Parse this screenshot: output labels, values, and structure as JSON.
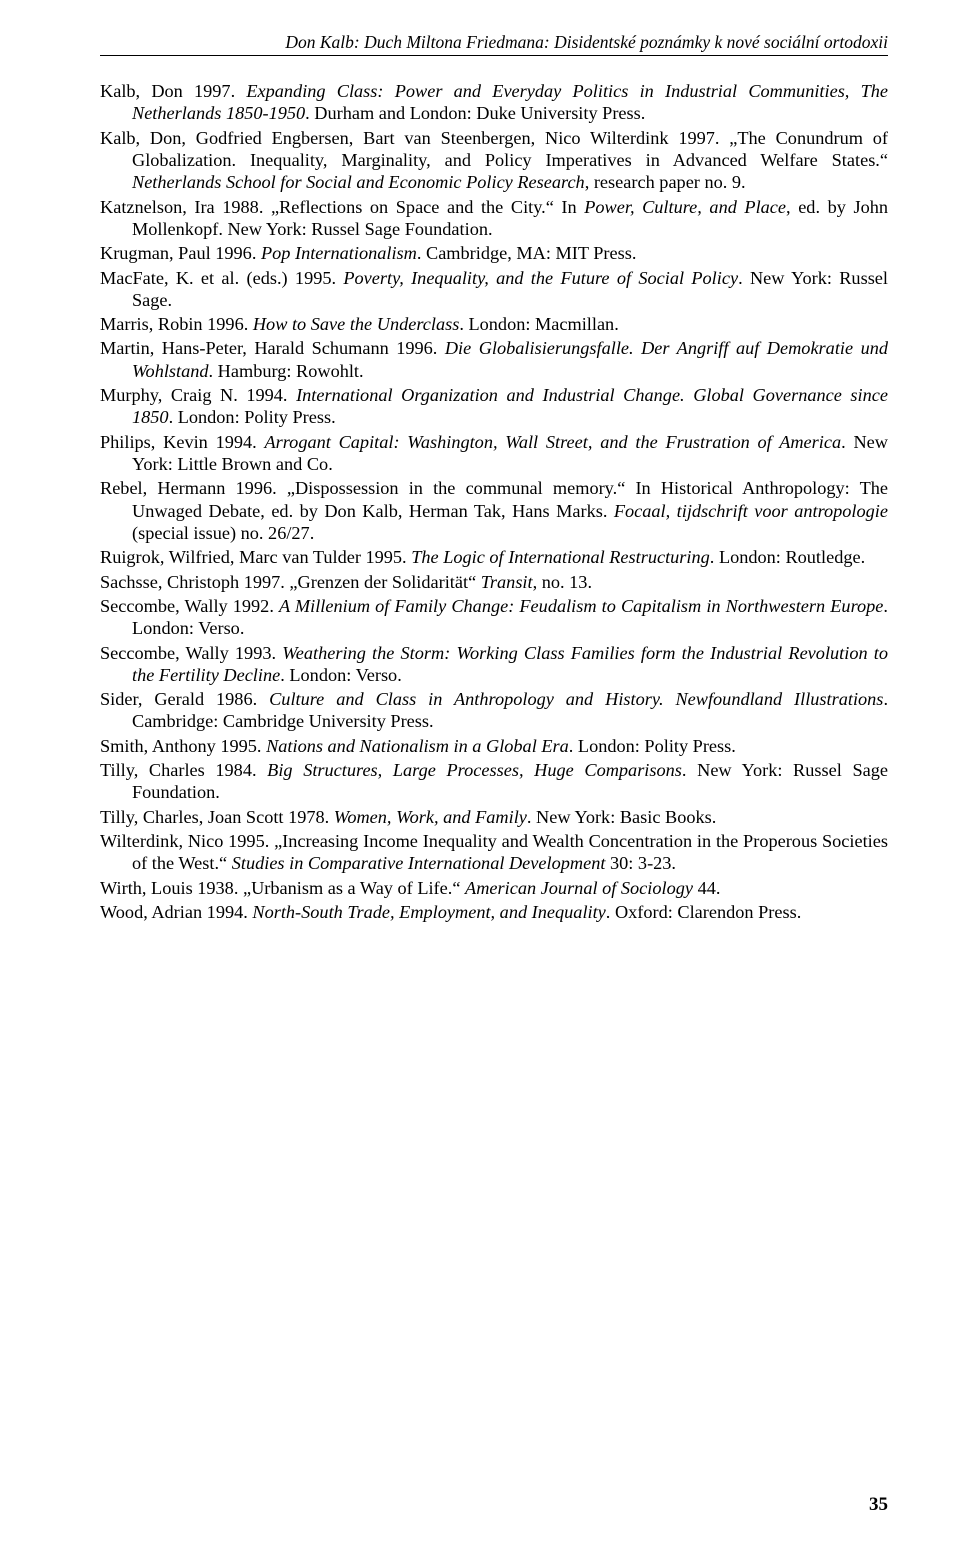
{
  "running_head": "Don Kalb: Duch Miltona Friedmana: Disidentské poznámky k nové sociální ortodoxii",
  "page_number": "35",
  "refs": [
    [
      {
        "t": "Kalb, Don 1997. "
      },
      {
        "t": "Expanding Class: Power and Everyday Politics in Industrial Communities, The Netherlands 1850-1950",
        "i": true
      },
      {
        "t": ". Durham and London: Duke University Press."
      }
    ],
    [
      {
        "t": "Kalb, Don, Godfried Engbersen, Bart van Steenbergen, Nico Wilterdink 1997. „The Conundrum of Globalization. Inequality, Marginality, and Policy Imperatives in Advanced Welfare States.“ "
      },
      {
        "t": "Netherlands School for Social and Economic Policy Research",
        "i": true
      },
      {
        "t": ", research paper no. 9."
      }
    ],
    [
      {
        "t": "Katznelson, Ira 1988. „Reflections on Space and the City.“ In "
      },
      {
        "t": "Power, Culture, and Place",
        "i": true
      },
      {
        "t": ", ed. by John Mollenkopf. New York: Russel Sage Foundation."
      }
    ],
    [
      {
        "t": "Krugman, Paul 1996. "
      },
      {
        "t": "Pop Internationalism",
        "i": true
      },
      {
        "t": ". Cambridge, MA: MIT Press."
      }
    ],
    [
      {
        "t": "MacFate, K. et al. (eds.) 1995. "
      },
      {
        "t": "Poverty, Inequality, and the Future of Social Policy",
        "i": true
      },
      {
        "t": ". New York: Russel Sage."
      }
    ],
    [
      {
        "t": "Marris, Robin 1996. "
      },
      {
        "t": "How to Save the Underclass",
        "i": true
      },
      {
        "t": ". London: Macmillan."
      }
    ],
    [
      {
        "t": "Martin, Hans-Peter, Harald Schumann 1996. "
      },
      {
        "t": "Die Globalisierungsfalle. Der Angriff auf Demokratie und Wohlstand",
        "i": true
      },
      {
        "t": ". Hamburg: Rowohlt."
      }
    ],
    [
      {
        "t": "Murphy, Craig N. 1994. "
      },
      {
        "t": "International Organization and Industrial Change. Global Governance since 1850",
        "i": true
      },
      {
        "t": ". London: Polity Press."
      }
    ],
    [
      {
        "t": "Philips, Kevin 1994. "
      },
      {
        "t": "Arrogant Capital: Washington, Wall Street, and the Frustration of America",
        "i": true
      },
      {
        "t": ". New York: Little Brown and Co."
      }
    ],
    [
      {
        "t": "Rebel, Hermann 1996. „Dispossession in the communal memory.“ In Historical Anthropology: The Unwaged Debate, ed. by Don Kalb, Herman Tak, Hans Marks. "
      },
      {
        "t": "Focaal, tijdschrift voor antropologie",
        "i": true
      },
      {
        "t": " (special issue) no. 26/27."
      }
    ],
    [
      {
        "t": "Ruigrok, Wilfried, Marc van Tulder 1995. "
      },
      {
        "t": "The Logic of International Restructuring",
        "i": true
      },
      {
        "t": ". London: Routledge."
      }
    ],
    [
      {
        "t": "Sachsse, Christoph 1997. „Grenzen der Solidarität“ "
      },
      {
        "t": "Transit",
        "i": true
      },
      {
        "t": ", no. 13."
      }
    ],
    [
      {
        "t": "Seccombe, Wally 1992. "
      },
      {
        "t": "A Millenium of Family Change: Feudalism to Capitalism in Northwestern Europe",
        "i": true
      },
      {
        "t": ". London: Verso."
      }
    ],
    [
      {
        "t": "Seccombe, Wally 1993. "
      },
      {
        "t": "Weathering the Storm: Working Class Families form the Industrial Revolution to the Fertility Decline",
        "i": true
      },
      {
        "t": ". London: Verso."
      }
    ],
    [
      {
        "t": "Sider, Gerald 1986. "
      },
      {
        "t": "Culture and Class in Anthropology and History. Newfoundland Illustrations",
        "i": true
      },
      {
        "t": ". Cambridge: Cambridge University Press."
      }
    ],
    [
      {
        "t": "Smith, Anthony 1995. "
      },
      {
        "t": "Nations and Nationalism in a Global Era",
        "i": true
      },
      {
        "t": ". London: Polity Press."
      }
    ],
    [
      {
        "t": "Tilly, Charles 1984. "
      },
      {
        "t": "Big Structures, Large Processes, Huge Comparisons",
        "i": true
      },
      {
        "t": ". New York: Russel Sage Foundation."
      }
    ],
    [
      {
        "t": "Tilly, Charles, Joan Scott 1978. "
      },
      {
        "t": "Women, Work, and Family",
        "i": true
      },
      {
        "t": ". New York: Basic Books."
      }
    ],
    [
      {
        "t": "Wilterdink, Nico 1995. „Increasing Income Inequality and Wealth Concentration in the Properous Societies of the West.“ "
      },
      {
        "t": "Studies in Comparative International Development",
        "i": true
      },
      {
        "t": " 30: 3-23."
      }
    ],
    [
      {
        "t": "Wirth, Louis 1938. „Urbanism as a Way of Life.“ "
      },
      {
        "t": "American Journal of Sociology",
        "i": true
      },
      {
        "t": " 44."
      }
    ],
    [
      {
        "t": "Wood, Adrian 1994. "
      },
      {
        "t": "North-South Trade, Employment, and Inequality",
        "i": true
      },
      {
        "t": ". Oxford: Clarendon Press."
      }
    ]
  ]
}
